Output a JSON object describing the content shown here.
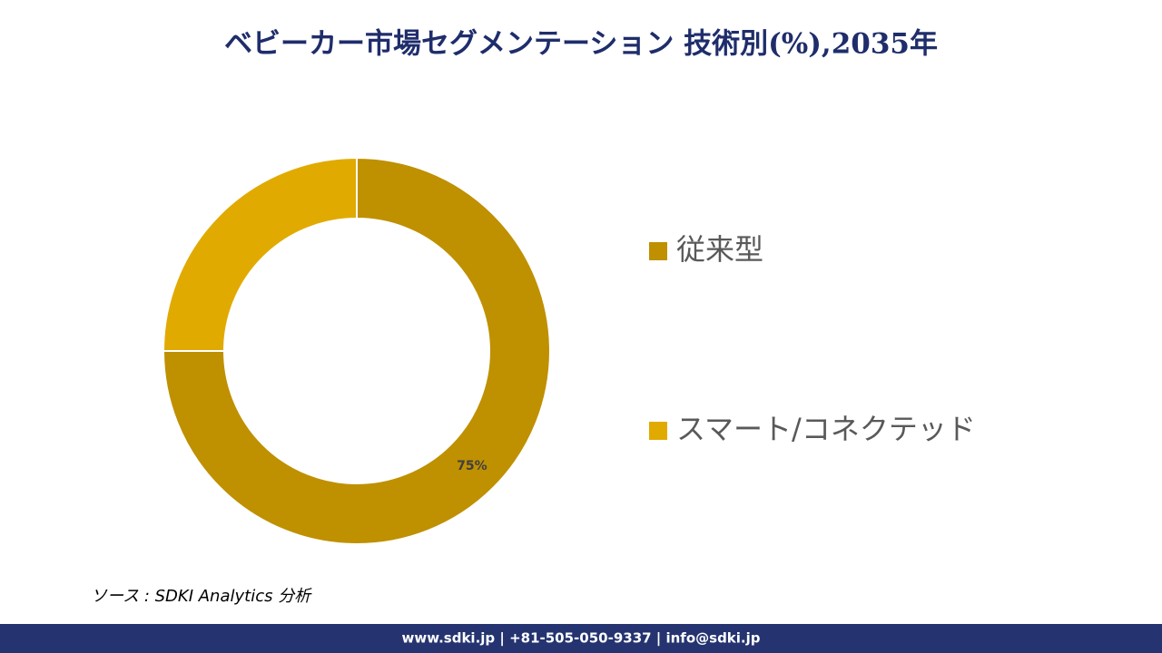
{
  "chart_data": {
    "type": "donut",
    "title": "ベビーカー市場セグメンテーション 技術別(%),2035年",
    "categories": [
      "従来型",
      "スマート/コネクテッド"
    ],
    "values": [
      75,
      25
    ],
    "value_labels": [
      "75%",
      null
    ],
    "colors": [
      "#bf9000",
      "#e1aa00"
    ],
    "source": "ソース : SDKI Analytics 分析",
    "footer": "www.sdki.jp | +81-505-050-9337 | info@sdki.jp"
  }
}
